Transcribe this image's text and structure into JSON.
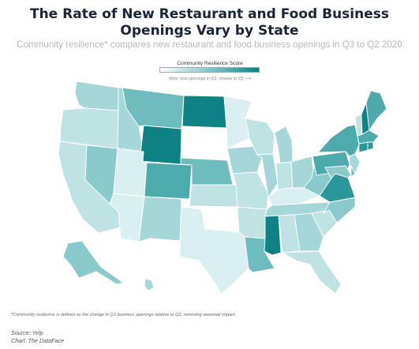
{
  "title": "The Rate of New Restaurant and Food Business Openings Vary by State",
  "title_line1": "The Rate of New Restaurant and Food Business",
  "title_line2": "Openings Vary by State",
  "subtitle": "Community resilience* compares new restaurant and food business openings in Q3 to Q2 2020",
  "legend": {
    "title": "Community Resilience Score",
    "subtitle": "More new openings in Q3, relative to Q2 ⟶"
  },
  "footnote": "*Community resilience is defined as the change in Q3 business openings relative to Q2, removing seasonal impact.",
  "source": "Source: Yelp",
  "credit": "Chart: The DataFace",
  "colors": {
    "c0": "#ffffff",
    "c1": "#daefef",
    "c2": "#bfe3e3",
    "c3": "#a6d7d8",
    "c4": "#8bcacb",
    "c5": "#6ebcbd",
    "c6": "#4eabad",
    "c7": "#2c979a",
    "c8": "#0e8285"
  },
  "chart_data": {
    "type": "choropleth",
    "metric": "Community Resilience Score",
    "scale": "relative shade level 0 (lightest) – 8 (darkest)",
    "states": {
      "WA": 3,
      "OR": 2,
      "CA": 2,
      "NV": 4,
      "ID": 3,
      "MT": 5,
      "WY": 8,
      "UT": 1,
      "AZ": 1,
      "CO": 6,
      "NM": 3,
      "ND": 8,
      "SD": 0,
      "NE": 5,
      "KS": 2,
      "OK": 0,
      "TX": 1,
      "MN": 1,
      "IA": 3,
      "MO": 2,
      "AR": 2,
      "LA": 5,
      "WI": 2,
      "IL": 3,
      "MI": 3,
      "IN": 2,
      "OH": 3,
      "KY": 1,
      "TN": 3,
      "MS": 8,
      "AL": 2,
      "GA": 3,
      "FL": 2,
      "SC": 2,
      "NC": 4,
      "VA": 7,
      "WV": 4,
      "PA": 6,
      "NY": 6,
      "VT": 2,
      "NH": 8,
      "ME": 6,
      "MA": 6,
      "CT": 7,
      "RI": 7,
      "NJ": 3,
      "DE": 5,
      "MD": 4,
      "AK": 4,
      "HI": 3
    }
  }
}
